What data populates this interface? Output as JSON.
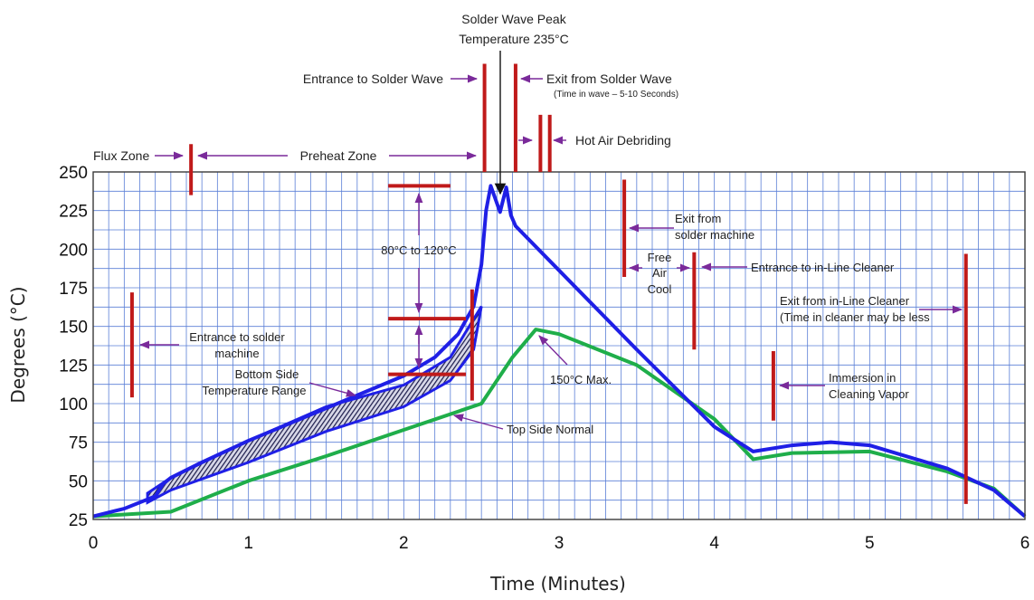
{
  "chart_data": {
    "type": "line",
    "title": "",
    "xlabel": "Time (Minutes)",
    "ylabel": "Degrees (°C)",
    "xlim": [
      0,
      6
    ],
    "ylim": [
      25,
      250
    ],
    "xticks": [
      0,
      1,
      2,
      3,
      4,
      5,
      6
    ],
    "yticks": [
      25,
      50,
      75,
      100,
      125,
      150,
      175,
      200,
      225,
      250
    ],
    "grid": true,
    "colors": {
      "upper": "#1f1fe6",
      "lower": "#1fae4a",
      "markers": "#c01a1a",
      "arrows": "#7a2a9a",
      "grid": "#5a7fd6",
      "shade": "#1a1a4a"
    },
    "series": [
      {
        "key": "upper",
        "x": [
          0,
          0.2,
          0.4,
          0.45,
          0.5,
          0.7,
          1.0,
          1.5,
          2.0,
          2.2,
          2.35,
          2.45,
          2.5,
          2.53,
          2.56,
          2.62,
          2.66,
          2.69,
          2.72,
          3.1,
          3.5,
          4.0,
          4.25,
          4.5,
          4.75,
          5.0,
          5.5,
          5.8,
          6.0
        ],
        "y": [
          27,
          32,
          40,
          48,
          52,
          62,
          76,
          97,
          118,
          130,
          145,
          163,
          190,
          225,
          241,
          224,
          240,
          222,
          215,
          176,
          135,
          85,
          69,
          73,
          75,
          73,
          58,
          44,
          27
        ]
      },
      {
        "key": "lower",
        "x": [
          0,
          0.5,
          1.0,
          1.5,
          2.0,
          2.5,
          2.7,
          2.85,
          3.0,
          3.5,
          4.0,
          4.25,
          4.5,
          5.0,
          5.5,
          5.8,
          6.0
        ],
        "y": [
          27,
          30,
          50,
          66,
          83,
          100,
          130,
          148,
          145,
          125,
          90,
          64,
          68,
          69,
          56,
          45,
          27
        ]
      }
    ],
    "shaded_band": {
      "label": "Bottom Side Temperature Range",
      "upper": {
        "x": [
          0.35,
          0.5,
          1.0,
          1.5,
          2.0,
          2.3,
          2.5
        ],
        "y": [
          42,
          52,
          76,
          98,
          112,
          130,
          163
        ]
      },
      "lower": {
        "x": [
          0.35,
          0.5,
          1.0,
          1.5,
          2.0,
          2.3,
          2.45,
          2.5
        ],
        "y": [
          36,
          44,
          62,
          82,
          98,
          115,
          135,
          163
        ]
      }
    },
    "markers": [
      {
        "x": 0.63,
        "y0": 235,
        "y1": 268
      },
      {
        "x": 2.52,
        "y0": 250,
        "y1": 320
      },
      {
        "x": 2.72,
        "y0": 250,
        "y1": 320
      },
      {
        "x": 2.88,
        "y0": 250,
        "y1": 287
      },
      {
        "x": 2.94,
        "y0": 250,
        "y1": 287
      },
      {
        "x": 0.25,
        "y0": 104,
        "y1": 172
      },
      {
        "x": 2.44,
        "y0": 102,
        "y1": 174
      },
      {
        "x": 3.42,
        "y0": 182,
        "y1": 245
      },
      {
        "x": 3.87,
        "y0": 135,
        "y1": 198
      },
      {
        "x": 4.38,
        "y0": 89,
        "y1": 134
      },
      {
        "x": 5.62,
        "y0": 35,
        "y1": 197
      }
    ],
    "range_bars": [
      {
        "x0": 1.9,
        "x1": 2.3,
        "y": 241
      },
      {
        "x0": 1.9,
        "x1": 2.4,
        "y": 155
      },
      {
        "x0": 1.9,
        "x1": 2.4,
        "y": 119
      }
    ],
    "annotations": {
      "peak_line1": "Solder Wave Peak",
      "peak_line2": "Temperature 235°C",
      "entrance_wave": "Entrance to Solder Wave",
      "exit_wave": "Exit from Solder Wave",
      "exit_wave_note": "(Time in wave – 5-10 Seconds)",
      "flux_zone": "Flux Zone",
      "preheat_zone": "Preheat Zone",
      "hot_air": "Hot Air Debriding",
      "range_label": "80°C to 120°C",
      "entrance_machine_1": "Entrance to solder",
      "entrance_machine_2": "machine",
      "bottom_side_1": "Bottom Side",
      "bottom_side_2": "Temperature Range",
      "max_150": "150°C Max.",
      "top_side": "Top Side Normal",
      "exit_machine_1": "Exit from",
      "exit_machine_2": "solder machine",
      "free_air_1": "Free",
      "free_air_2": "Air",
      "free_air_3": "Cool",
      "entrance_cleaner": "Entrance to in-Line Cleaner",
      "exit_cleaner_1": "Exit from in-Line Cleaner",
      "exit_cleaner_2": "(Time in cleaner may be less",
      "immersion_1": "Immersion in",
      "immersion_2": "Cleaning Vapor"
    }
  }
}
